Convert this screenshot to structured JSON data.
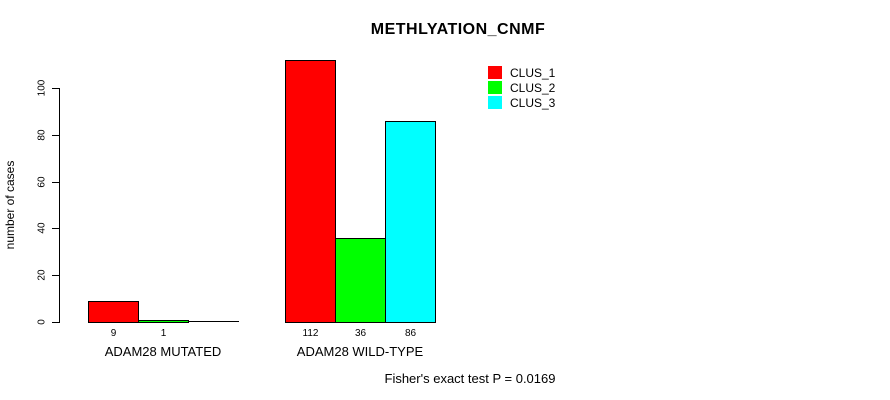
{
  "chart_data": {
    "type": "bar",
    "title": "METHLYATION_CNMF",
    "ylabel": "number of cases",
    "xlabel": "",
    "categories": [
      "ADAM28 MUTATED",
      "ADAM28 WILD-TYPE"
    ],
    "series": [
      {
        "name": "CLUS_1",
        "color": "#ff0000",
        "values": [
          9,
          112
        ]
      },
      {
        "name": "CLUS_2",
        "color": "#00ff00",
        "values": [
          1,
          36
        ]
      },
      {
        "name": "CLUS_3",
        "color": "#00ffff",
        "values": [
          0,
          86
        ]
      }
    ],
    "bar_value_labels": [
      [
        "9",
        "1",
        ""
      ],
      [
        "112",
        "36",
        "86"
      ]
    ],
    "yticks": [
      0,
      20,
      40,
      60,
      80,
      100
    ],
    "ylim": [
      0,
      115
    ],
    "grid": false,
    "legend_position": "top-right",
    "legend_box": false,
    "bar_border_color": "#000000",
    "axis_color": "#000000",
    "annotation": "Fisher's exact test P = 0.0169"
  }
}
